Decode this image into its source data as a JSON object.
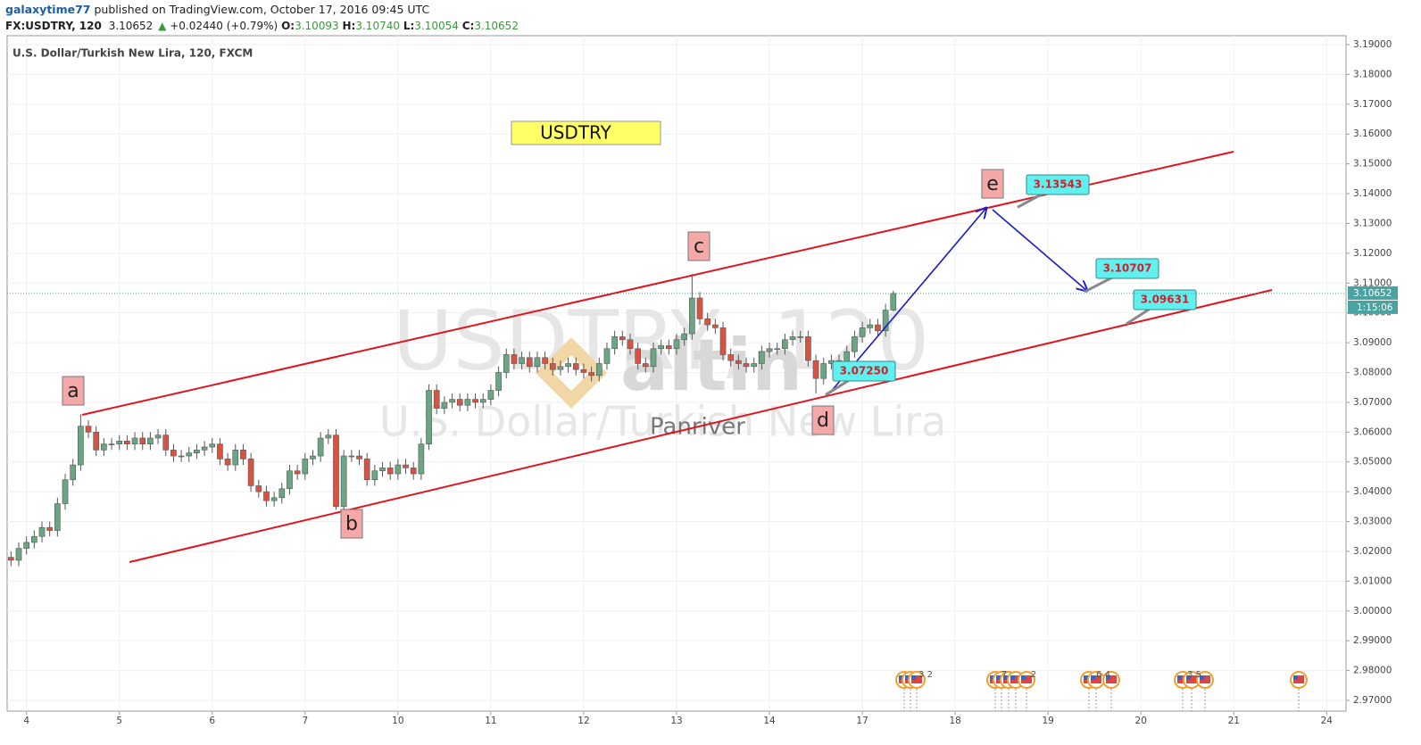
{
  "header": {
    "author": "galaxytime77",
    "published": "published on TradingView.com, October 17, 2016 09:45 UTC",
    "symbol": "FX:USDTRY, 120",
    "last": "3.10652",
    "arrow": "▲",
    "change": "+0.02440 (+0.79%)",
    "o_label": "O:",
    "o": "3.10093",
    "h_label": "H:",
    "h": "3.10740",
    "l_label": "L:",
    "l": "3.10054",
    "c_label": "C:",
    "c": "3.10652"
  },
  "chart_data": {
    "type": "candlestick",
    "title": "U.S. Dollar/Turkish New Lira, 120, FXCM",
    "up_color": "#6ba583",
    "down_color": "#d75442",
    "grid": true,
    "x": [
      0.5,
      1.5,
      2.5,
      3.5,
      4.5,
      5.5,
      6.5,
      7.5,
      8.5,
      9.5,
      10.5,
      11.5,
      12.5,
      13.5,
      14.5,
      15.5,
      16.5,
      17.5,
      18.5,
      19.5,
      20.5,
      21.5,
      22.5,
      23.5,
      24.5,
      25.5,
      26.5,
      27.5,
      28.5,
      29.5,
      30.5,
      31.5,
      32.5,
      33.5,
      34.5,
      35.5,
      36.5,
      37.5,
      38.5,
      39.5,
      40.5,
      41.5,
      42.5,
      43.5,
      44.5,
      45.5,
      46.5,
      47.5,
      48.5,
      49.5,
      50.5,
      51.5,
      52.5,
      53.5,
      54.5,
      55.5,
      56.5,
      57.5,
      58.5,
      59.5,
      60.5,
      61.5,
      62.5,
      63.5,
      64.5,
      65.5,
      66.5,
      67.5,
      68.5,
      69.5,
      70.5,
      71.5,
      72.5,
      73.5,
      74.5,
      75.5,
      76.5,
      77.5,
      78.5,
      79.5,
      80.5,
      81.5,
      82.5,
      83.5,
      84.5,
      85.5,
      86.5,
      87.5,
      88.5,
      89.5,
      90.5,
      91.5,
      92.5,
      93.5,
      94.5,
      95.5,
      96.5,
      97.5,
      98.5,
      99.5,
      100.5,
      101.5,
      102.5,
      103.5,
      104.5,
      105.5,
      106.5,
      107.5,
      108.5,
      109.5,
      110.5,
      111.5,
      112.5,
      113.5,
      114.5
    ],
    "open": [
      3.018,
      3.017,
      3.021,
      3.023,
      3.025,
      3.028,
      3.027,
      3.036,
      3.044,
      3.049,
      3.062,
      3.06,
      3.054,
      3.056,
      3.056,
      3.057,
      3.056,
      3.058,
      3.056,
      3.058,
      3.059,
      3.054,
      3.052,
      3.052,
      3.053,
      3.054,
      3.055,
      3.056,
      3.051,
      3.049,
      3.054,
      3.051,
      3.042,
      3.04,
      3.037,
      3.038,
      3.041,
      3.047,
      3.046,
      3.051,
      3.052,
      3.058,
      3.059,
      3.035,
      3.052,
      3.052,
      3.051,
      3.044,
      3.047,
      3.048,
      3.046,
      3.049,
      3.048,
      3.046,
      3.056,
      3.074,
      3.068,
      3.07,
      3.071,
      3.069,
      3.071,
      3.07,
      3.071,
      3.074,
      3.08,
      3.086,
      3.083,
      3.085,
      3.082,
      3.085,
      3.083,
      3.081,
      3.082,
      3.083,
      3.081,
      3.08,
      3.079,
      3.083,
      3.088,
      3.092,
      3.091,
      3.088,
      3.083,
      3.082,
      3.088,
      3.089,
      3.088,
      3.091,
      3.093,
      3.105,
      3.098,
      3.096,
      3.095,
      3.086,
      3.084,
      3.083,
      3.082,
      3.083,
      3.087,
      3.088,
      3.088,
      3.091,
      3.092,
      3.092,
      3.084,
      3.078,
      3.083,
      3.084,
      3.082,
      3.087,
      3.092,
      3.095,
      3.096,
      3.094,
      3.10093
    ],
    "high": [
      3.02,
      3.023,
      3.025,
      3.027,
      3.03,
      3.03,
      3.038,
      3.046,
      3.051,
      3.066,
      3.064,
      3.062,
      3.058,
      3.058,
      3.059,
      3.059,
      3.06,
      3.06,
      3.06,
      3.061,
      3.061,
      3.056,
      3.054,
      3.055,
      3.056,
      3.057,
      3.058,
      3.058,
      3.053,
      3.056,
      3.056,
      3.053,
      3.044,
      3.042,
      3.04,
      3.043,
      3.049,
      3.049,
      3.053,
      3.054,
      3.06,
      3.061,
      3.061,
      3.054,
      3.054,
      3.054,
      3.053,
      3.049,
      3.05,
      3.05,
      3.051,
      3.051,
      3.05,
      3.058,
      3.076,
      3.076,
      3.072,
      3.073,
      3.073,
      3.073,
      3.073,
      3.073,
      3.076,
      3.082,
      3.088,
      3.088,
      3.087,
      3.087,
      3.087,
      3.087,
      3.085,
      3.084,
      3.085,
      3.085,
      3.083,
      3.082,
      3.085,
      3.09,
      3.094,
      3.094,
      3.093,
      3.09,
      3.085,
      3.09,
      3.091,
      3.091,
      3.093,
      3.095,
      3.113,
      3.107,
      3.1,
      3.098,
      3.097,
      3.088,
      3.086,
      3.085,
      3.085,
      3.089,
      3.09,
      3.09,
      3.093,
      3.094,
      3.094,
      3.094,
      3.086,
      3.085,
      3.086,
      3.086,
      3.089,
      3.094,
      3.097,
      3.098,
      3.098,
      3.103,
      3.1074
    ],
    "low": [
      3.015,
      3.015,
      3.019,
      3.021,
      3.023,
      3.025,
      3.025,
      3.034,
      3.042,
      3.047,
      3.058,
      3.052,
      3.052,
      3.054,
      3.054,
      3.054,
      3.054,
      3.054,
      3.054,
      3.056,
      3.052,
      3.05,
      3.05,
      3.05,
      3.051,
      3.052,
      3.053,
      3.049,
      3.047,
      3.047,
      3.049,
      3.04,
      3.038,
      3.035,
      3.035,
      3.036,
      3.039,
      3.044,
      3.044,
      3.049,
      3.05,
      3.056,
      3.034,
      3.033,
      3.05,
      3.049,
      3.042,
      3.042,
      3.045,
      3.044,
      3.044,
      3.046,
      3.044,
      3.044,
      3.054,
      3.066,
      3.066,
      3.068,
      3.067,
      3.067,
      3.068,
      3.068,
      3.069,
      3.072,
      3.078,
      3.081,
      3.081,
      3.08,
      3.08,
      3.081,
      3.079,
      3.079,
      3.08,
      3.079,
      3.078,
      3.077,
      3.077,
      3.081,
      3.086,
      3.089,
      3.086,
      3.081,
      3.08,
      3.08,
      3.086,
      3.086,
      3.086,
      3.089,
      3.091,
      3.096,
      3.094,
      3.093,
      3.084,
      3.082,
      3.081,
      3.08,
      3.08,
      3.081,
      3.085,
      3.086,
      3.086,
      3.089,
      3.09,
      3.082,
      3.073,
      3.076,
      3.081,
      3.08,
      3.08,
      3.085,
      3.09,
      3.093,
      3.092,
      3.092,
      3.10054
    ],
    "close": [
      3.017,
      3.021,
      3.023,
      3.025,
      3.028,
      3.027,
      3.036,
      3.044,
      3.049,
      3.062,
      3.06,
      3.054,
      3.056,
      3.056,
      3.057,
      3.056,
      3.058,
      3.056,
      3.058,
      3.059,
      3.054,
      3.052,
      3.052,
      3.053,
      3.054,
      3.055,
      3.056,
      3.051,
      3.049,
      3.054,
      3.051,
      3.042,
      3.04,
      3.037,
      3.038,
      3.041,
      3.047,
      3.046,
      3.051,
      3.052,
      3.058,
      3.059,
      3.035,
      3.052,
      3.052,
      3.051,
      3.044,
      3.047,
      3.048,
      3.046,
      3.049,
      3.048,
      3.046,
      3.056,
      3.074,
      3.068,
      3.07,
      3.071,
      3.069,
      3.071,
      3.07,
      3.071,
      3.074,
      3.08,
      3.086,
      3.083,
      3.085,
      3.082,
      3.085,
      3.083,
      3.081,
      3.082,
      3.083,
      3.081,
      3.08,
      3.079,
      3.083,
      3.088,
      3.092,
      3.091,
      3.088,
      3.083,
      3.082,
      3.088,
      3.089,
      3.088,
      3.091,
      3.093,
      3.105,
      3.098,
      3.096,
      3.095,
      3.086,
      3.084,
      3.083,
      3.082,
      3.083,
      3.087,
      3.088,
      3.088,
      3.091,
      3.092,
      3.092,
      3.084,
      3.078,
      3.083,
      3.084,
      3.082,
      3.087,
      3.092,
      3.095,
      3.096,
      3.094,
      3.10093,
      3.10652
    ],
    "xlim": [
      0,
      173
    ],
    "xticks": [
      {
        "value": 2.5,
        "label": "4"
      },
      {
        "value": 14.5,
        "label": "5"
      },
      {
        "value": 26.5,
        "label": "6"
      },
      {
        "value": 38.5,
        "label": "7"
      },
      {
        "value": 50.5,
        "label": "10"
      },
      {
        "value": 62.5,
        "label": "11"
      },
      {
        "value": 74.5,
        "label": "12"
      },
      {
        "value": 86.5,
        "label": "13"
      },
      {
        "value": 98.5,
        "label": "14"
      },
      {
        "value": 110.5,
        "label": "17"
      },
      {
        "value": 122.5,
        "label": "18"
      },
      {
        "value": 134.5,
        "label": "19"
      },
      {
        "value": 146.5,
        "label": "20"
      },
      {
        "value": 158.5,
        "label": "21"
      },
      {
        "value": 170.5,
        "label": "24"
      }
    ],
    "ylim": [
      2.9664,
      3.193
    ],
    "yticks": [
      {
        "value": 2.97,
        "label": "2.97000"
      },
      {
        "value": 2.98,
        "label": "2.98000"
      },
      {
        "value": 2.99,
        "label": "2.99000"
      },
      {
        "value": 3.0,
        "label": "3.00000"
      },
      {
        "value": 3.01,
        "label": "3.01000"
      },
      {
        "value": 3.02,
        "label": "3.02000"
      },
      {
        "value": 3.03,
        "label": "3.03000"
      },
      {
        "value": 3.04,
        "label": "3.04000"
      },
      {
        "value": 3.05,
        "label": "3.05000"
      },
      {
        "value": 3.06,
        "label": "3.06000"
      },
      {
        "value": 3.07,
        "label": "3.07000"
      },
      {
        "value": 3.08,
        "label": "3.08000"
      },
      {
        "value": 3.09,
        "label": "3.09000"
      },
      {
        "value": 3.1,
        "label": "3.10000"
      },
      {
        "value": 3.11,
        "label": "3.11000"
      },
      {
        "value": 3.12,
        "label": "3.12000"
      },
      {
        "value": 3.13,
        "label": "3.13000"
      },
      {
        "value": 3.14,
        "label": "3.14000"
      },
      {
        "value": 3.15,
        "label": "3.15000"
      },
      {
        "value": 3.16,
        "label": "3.16000"
      },
      {
        "value": 3.17,
        "label": "3.17000"
      },
      {
        "value": 3.18,
        "label": "3.18000"
      },
      {
        "value": 3.19,
        "label": "3.19000"
      }
    ],
    "last_price": 3.10652,
    "countdown": "1:15:06",
    "watermark": {
      "symbol": "USDTRY, 120",
      "name": "U.S. Dollar/Turkish New Lira",
      "logo": "altin",
      "author": "Panriver"
    },
    "symbol_box": "USDTRY",
    "wave_labels": [
      "a",
      "b",
      "c",
      "d",
      "e"
    ],
    "price_callouts": [
      3.13543,
      3.10707,
      3.09631,
      {
        "value": 3.0725,
        "label": "3.07250"
      }
    ],
    "event_counts": [
      "3 2",
      "7",
      "2",
      "6 4",
      "3 5"
    ]
  }
}
